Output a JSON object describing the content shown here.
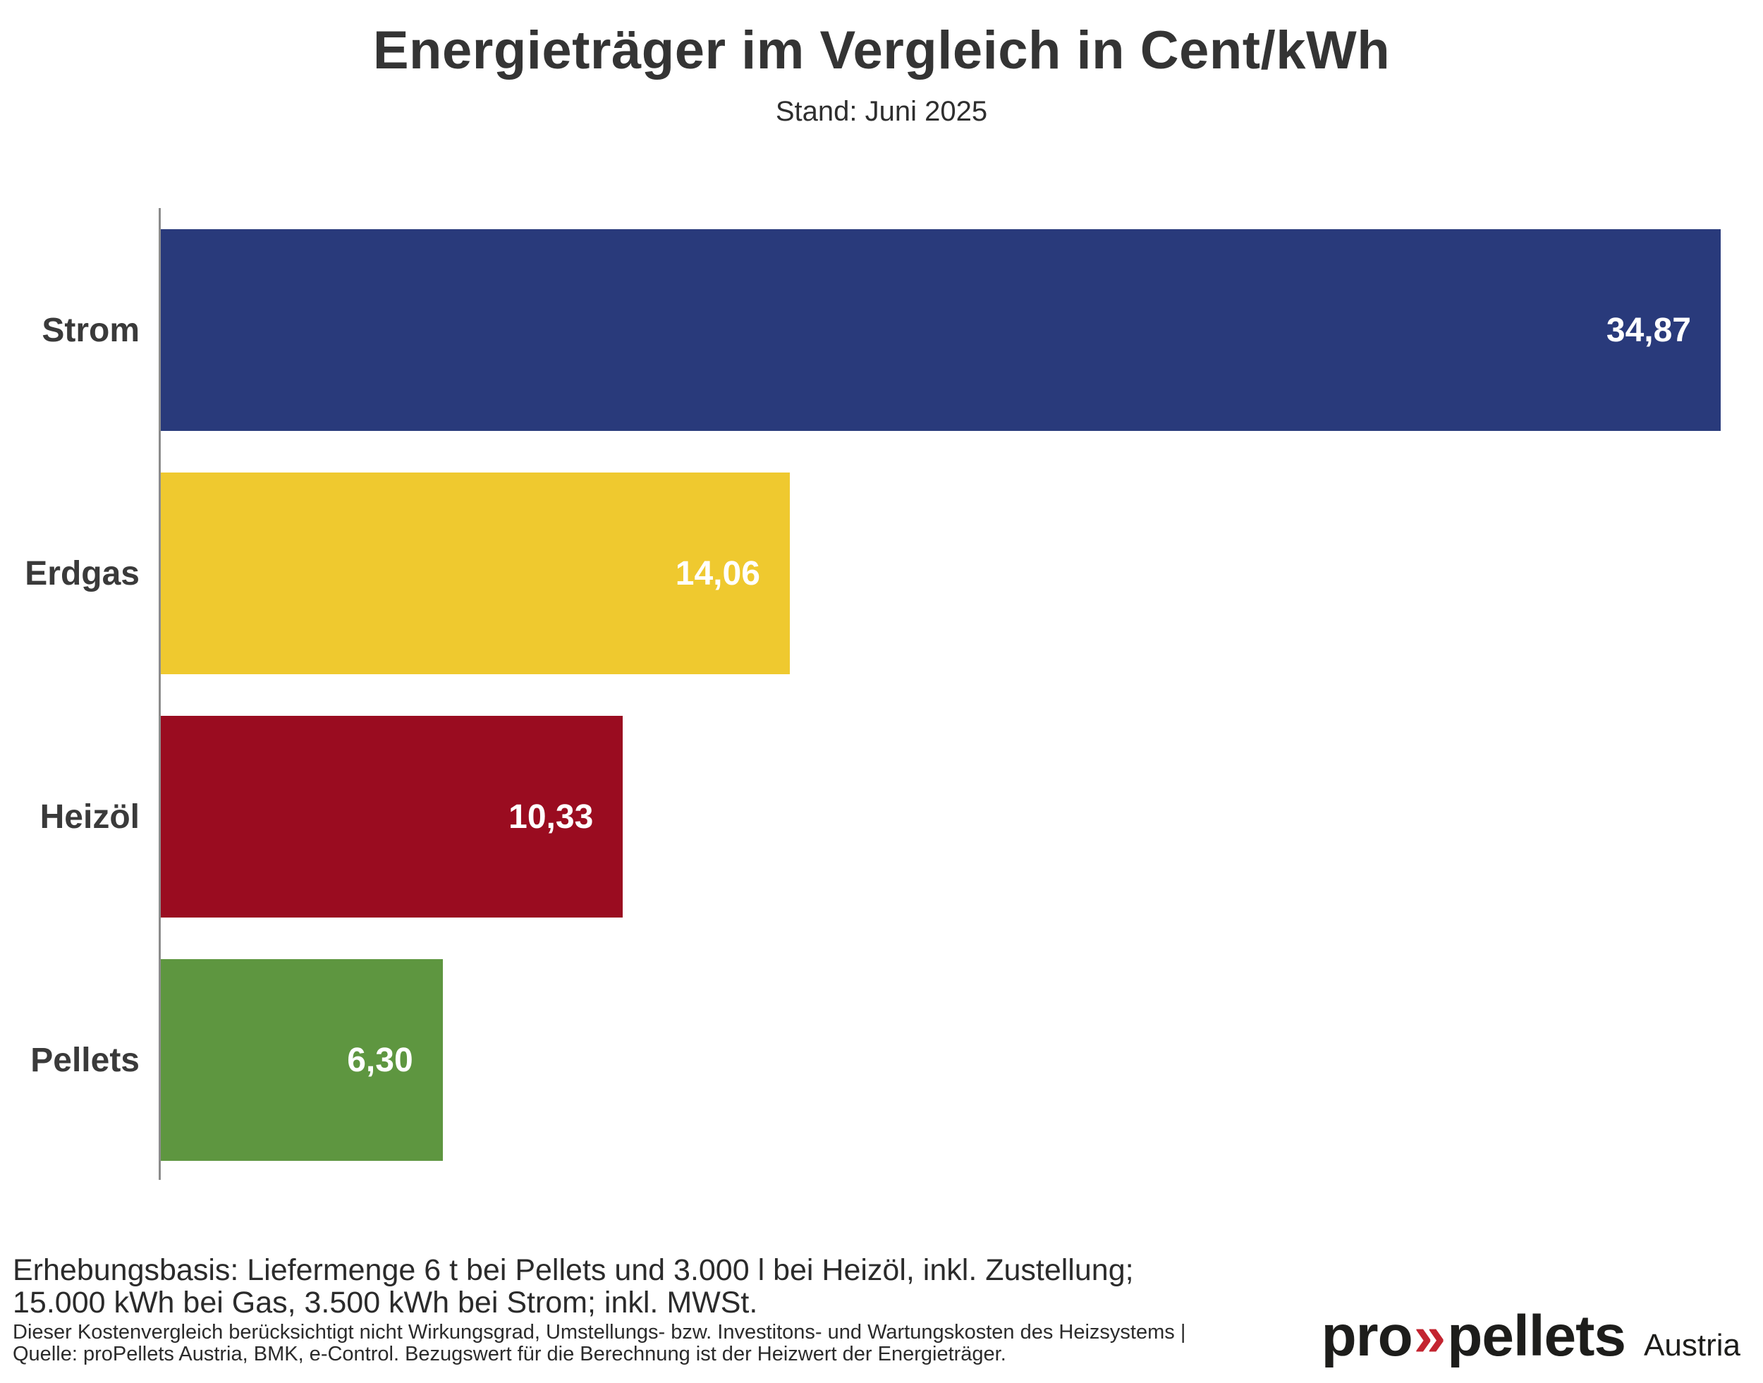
{
  "title": "Energieträger im Vergleich in Cent/kWh",
  "subtitle": "Stand: Juni 2025",
  "chart_data": {
    "type": "bar",
    "orientation": "horizontal",
    "title": "Energieträger im Vergleich in Cent/kWh",
    "subtitle": "Stand: Juni 2025",
    "xlabel": "",
    "ylabel": "",
    "xlim": [
      0,
      34.87
    ],
    "grid": false,
    "legend": false,
    "value_label_position": "inside-right",
    "categories": [
      "Strom",
      "Erdgas",
      "Heizöl",
      "Pellets"
    ],
    "values": [
      34.87,
      14.06,
      10.33,
      6.3
    ],
    "value_labels": [
      "34,87",
      "14,06",
      "10,33",
      "6,30"
    ],
    "bar_colors": [
      "#293a7b",
      "#efc92f",
      "#9a0c20",
      "#5e9640"
    ],
    "axis_color": "#8c8c8c",
    "label_color": "#3a3a3a",
    "value_text_color": "#ffffff"
  },
  "footer": {
    "basis_line1": "Erhebungsbasis: Liefermenge 6 t bei Pellets und 3.000 l bei Heizöl, inkl. Zustellung;",
    "basis_line2": "15.000 kWh bei Gas, 3.500 kWh bei Strom; inkl. MWSt.",
    "note_line1": "Dieser Kostenvergleich berücksichtigt nicht Wirkungsgrad, Umstellungs- bzw. Investitons- und Wartungskosten des Heizsystems |",
    "note_line2": "Quelle: proPellets Austria, BMK, e-Control. Bezugswert für die Berechnung ist der Heizwert der Energieträger."
  },
  "logo": {
    "part1": "pro",
    "chevron": "»",
    "part2": "pellets",
    "suffix": "Austria",
    "chevron_color": "#c32430",
    "text_color": "#1d1d1b"
  }
}
